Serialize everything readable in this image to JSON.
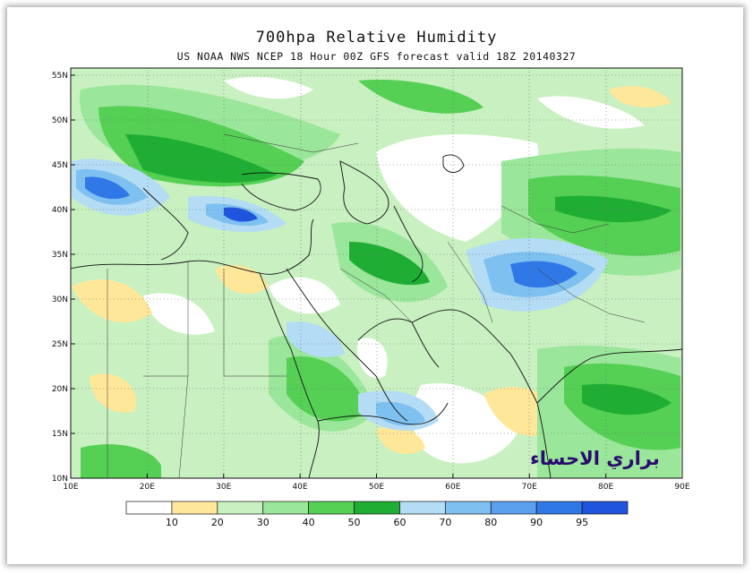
{
  "title": "700hpa Relative Humidity",
  "subtitle": "US NOAA NWS NCEP 18 Hour 00Z GFS forecast valid 18Z 20140327",
  "watermark": "براري الاحساء",
  "axes": {
    "lat_labels": [
      "55N",
      "50N",
      "45N",
      "40N",
      "35N",
      "30N",
      "25N",
      "20N",
      "15N",
      "10N"
    ],
    "lon_labels": [
      "10E",
      "20E",
      "30E",
      "40E",
      "50E",
      "60E",
      "70E",
      "80E",
      "90E"
    ],
    "lon_range": [
      10,
      90
    ],
    "lat_range": [
      10,
      56
    ]
  },
  "legend": {
    "labels": [
      "10",
      "20",
      "30",
      "40",
      "50",
      "60",
      "70",
      "80",
      "90",
      "95"
    ],
    "colors": [
      "#ffffff",
      "#ffe79a",
      "#c8f0c0",
      "#9ae69a",
      "#55d055",
      "#1fae33",
      "#b4dcf5",
      "#7ec0f0",
      "#5aa0ee",
      "#3078e6",
      "#1f55dd"
    ]
  },
  "colors": {
    "land_base": "#c8f0c0",
    "coast": "#111111"
  }
}
